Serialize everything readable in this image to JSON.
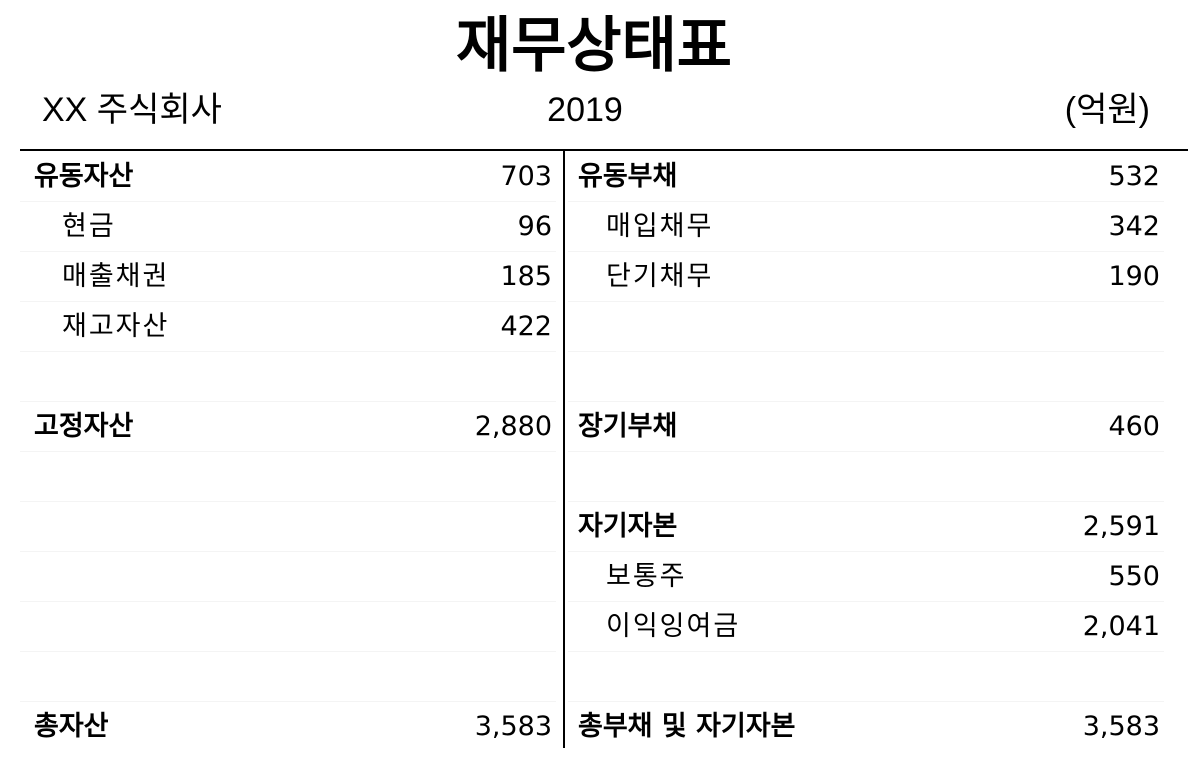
{
  "header": {
    "title": "재무상태표",
    "company": "XX 주식회사",
    "year": "2019",
    "unit": "(억원)"
  },
  "assets": {
    "rows": [
      {
        "label": "유동자산",
        "value": "703",
        "bold": true
      },
      {
        "label": "현금",
        "value": "96",
        "bold": false
      },
      {
        "label": "매출채권",
        "value": "185",
        "bold": false
      },
      {
        "label": "재고자산",
        "value": "422",
        "bold": false
      },
      {
        "label": "",
        "value": "",
        "bold": false
      },
      {
        "label": "고정자산",
        "value": "2,880",
        "bold": true
      },
      {
        "label": "",
        "value": "",
        "bold": false
      },
      {
        "label": "",
        "value": "",
        "bold": false
      },
      {
        "label": "",
        "value": "",
        "bold": false
      },
      {
        "label": "",
        "value": "",
        "bold": false
      },
      {
        "label": "",
        "value": "",
        "bold": false
      },
      {
        "label": "총자산",
        "value": "3,583",
        "bold": true
      }
    ]
  },
  "liabilities_equity": {
    "rows": [
      {
        "label": "유동부채",
        "value": "532",
        "bold": true
      },
      {
        "label": "매입채무",
        "value": "342",
        "bold": false
      },
      {
        "label": "단기채무",
        "value": "190",
        "bold": false
      },
      {
        "label": "",
        "value": "",
        "bold": false
      },
      {
        "label": "",
        "value": "",
        "bold": false
      },
      {
        "label": "장기부채",
        "value": "460",
        "bold": true
      },
      {
        "label": "",
        "value": "",
        "bold": false
      },
      {
        "label": "자기자본",
        "value": "2,591",
        "bold": true
      },
      {
        "label": "보통주",
        "value": "550",
        "bold": false
      },
      {
        "label": "이익잉여금",
        "value": "2,041",
        "bold": false
      },
      {
        "label": "",
        "value": "",
        "bold": false
      },
      {
        "label": "총부채 및 자기자본",
        "value": "3,583",
        "bold": true
      }
    ]
  }
}
